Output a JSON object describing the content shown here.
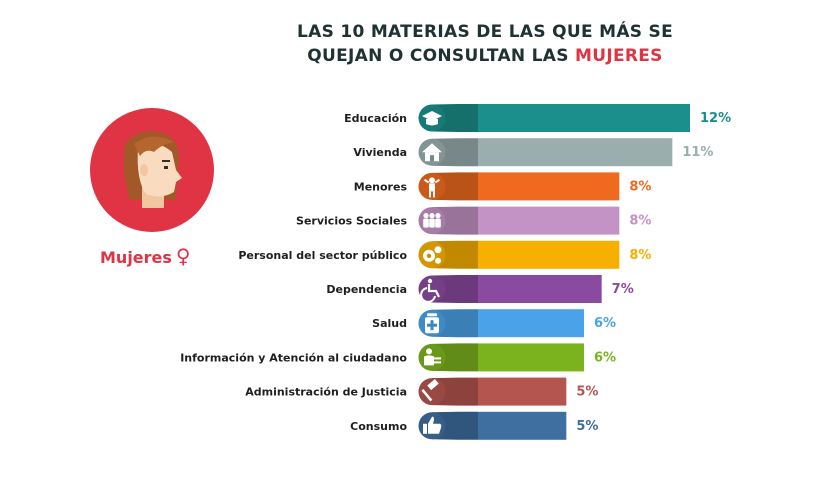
{
  "title": {
    "line1": "LAS 10 MATERIAS DE LAS QUE MÁS SE",
    "line2_prefix": "QUEJAN O CONSULTAN LAS ",
    "line2_accent": "MUJERES"
  },
  "avatar": {
    "label": "Mujeres",
    "symbol": "♀",
    "circle_color": "#e03344"
  },
  "chart_data": {
    "type": "bar",
    "orientation": "horizontal",
    "categories": [
      "Educación",
      "Vivienda",
      "Menores",
      "Servicios Sociales",
      "Personal del sector público",
      "Dependencia",
      "Salud",
      "Información y Atención al ciudadano",
      "Administración de Justicia",
      "Consumo"
    ],
    "values": [
      12,
      11,
      8,
      8,
      8,
      7,
      6,
      6,
      5,
      5
    ],
    "value_labels": [
      "12%",
      "11%",
      "8%",
      "8%",
      "8%",
      "7%",
      "6%",
      "6%",
      "5%",
      "5%"
    ],
    "colors": [
      "#1b8f8b",
      "#9aaeae",
      "#ef6a1f",
      "#c493c6",
      "#f7b000",
      "#8a4a9f",
      "#4aa3e8",
      "#7bb31e",
      "#b55550",
      "#3f6ea1"
    ],
    "icons": [
      "graduation-cap-icon",
      "house-icon",
      "child-icon",
      "people-group-icon",
      "gears-icon",
      "wheelchair-icon",
      "medicine-bottle-icon",
      "person-info-icon",
      "gavel-icon",
      "thumbs-up-icon"
    ],
    "grid": false,
    "legend": "none"
  }
}
